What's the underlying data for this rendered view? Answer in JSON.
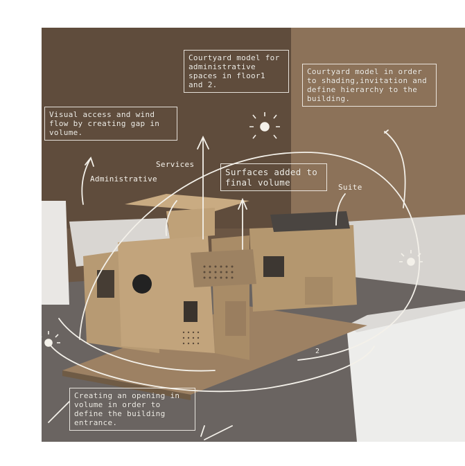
{
  "annotations": {
    "courtyard_admin": "Courtyard model for administrative spaces in floor1 and 2.",
    "courtyard_order": "Courtyard model in order to shading,invitation and define hierarchy to the building.",
    "visual_access": "Visual access and wind flow by creating gap in volume.",
    "administrative": "Administrative",
    "services": "Services",
    "surfaces_added": "Surfaces added to final volume",
    "suite": "Suite",
    "opening": "Creating an opening in volume in order to define the building entrance.",
    "number_2": "2"
  },
  "colors": {
    "wall_background": "#6b5644",
    "wall_right": "#8a6f55",
    "floor": "#6a6461",
    "cork": "#b89a72",
    "annotation_ink": "#f4f1ea"
  }
}
